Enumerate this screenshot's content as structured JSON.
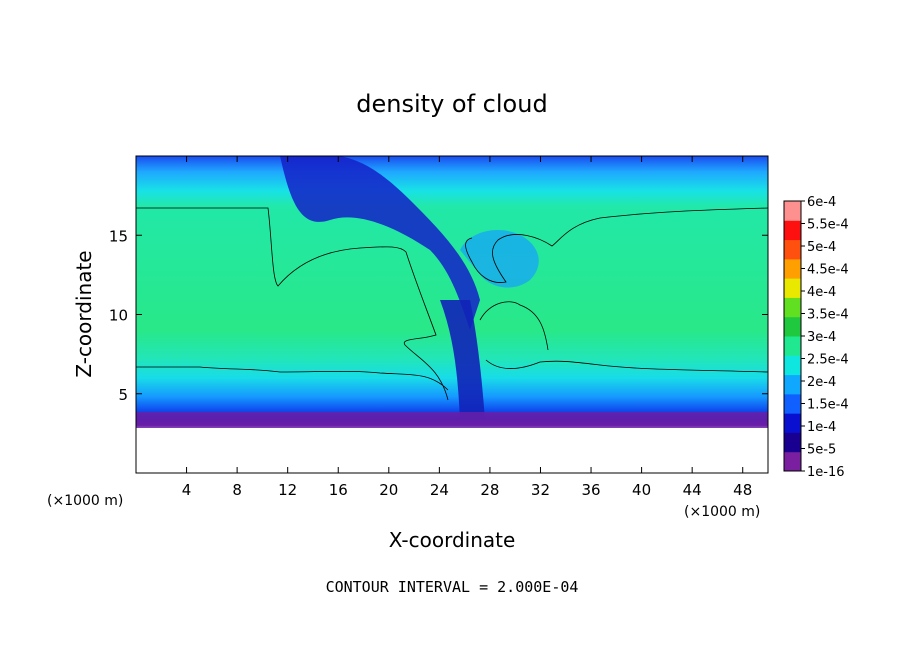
{
  "chart_data": {
    "type": "heatmap",
    "title": "density of cloud",
    "xlabel": "X-coordinate",
    "ylabel": "Z-coordinate",
    "x_unit_left": "(×1000 m)",
    "x_unit_right": "(×1000 m)",
    "xlim": [
      0,
      50
    ],
    "ylim": [
      0,
      20
    ],
    "x_ticks": [
      4,
      8,
      12,
      16,
      20,
      24,
      28,
      32,
      36,
      40,
      44,
      48
    ],
    "y_ticks": [
      5,
      10,
      15
    ],
    "footer": "CONTOUR INTERVAL = 2.000E-04",
    "contour_line_level": 0.0002,
    "colorbar": {
      "labels": [
        "6e-4",
        "5.5e-4",
        "5e-4",
        "4.5e-4",
        "4e-4",
        "3.5e-4",
        "3e-4",
        "2.5e-4",
        "2e-4",
        "1.5e-4",
        "1e-4",
        "5e-5",
        "1e-16"
      ],
      "colors": [
        "#7a1fa0",
        "#1a0090",
        "#0a10d0",
        "#1060ff",
        "#10a8ff",
        "#10e6e0",
        "#20e890",
        "#20c840",
        "#60e020",
        "#e8e800",
        "#ffa000",
        "#ff5010",
        "#ff1010",
        "#ff9090"
      ]
    }
  }
}
